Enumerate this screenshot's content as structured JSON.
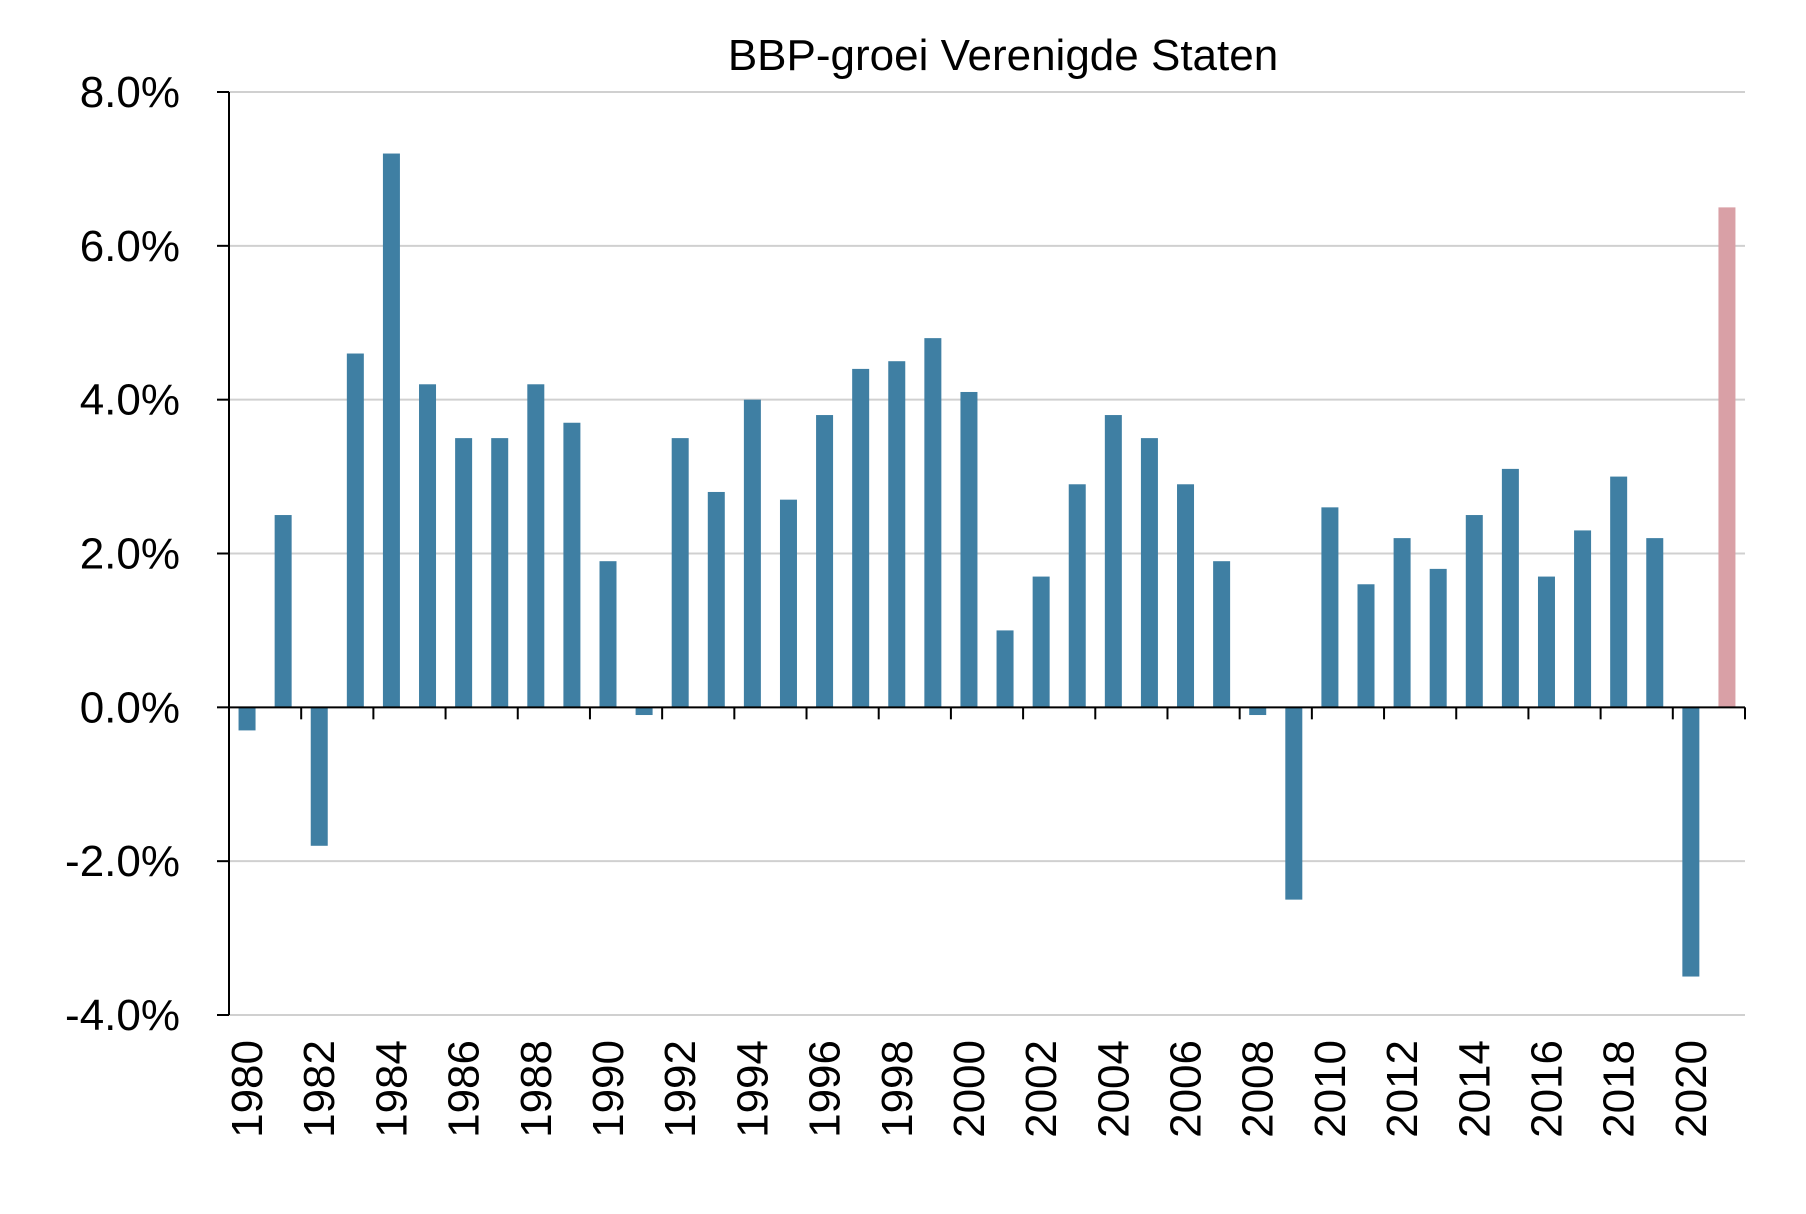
{
  "chart_data": {
    "type": "bar",
    "title": "BBP-groei Verenigde Staten",
    "xlabel": "",
    "ylabel": "",
    "ylim": [
      -4.0,
      8.0
    ],
    "y_ticks": [
      "-4.0%",
      "-2.0%",
      "0.0%",
      "2.0%",
      "4.0%",
      "6.0%",
      "8.0%"
    ],
    "y_tick_values": [
      -4,
      -2,
      0,
      2,
      4,
      6,
      8
    ],
    "x_tick_labels": [
      "1980",
      "1982",
      "1984",
      "1986",
      "1988",
      "1990",
      "1992",
      "1994",
      "1996",
      "1998",
      "2000",
      "2002",
      "2004",
      "2006",
      "2008",
      "2010",
      "2012",
      "2014",
      "2016",
      "2018",
      "2020"
    ],
    "grid": true,
    "legend": "none",
    "colors": {
      "actual": "#3f7fa3",
      "forecast": "#d9a0a6",
      "grid": "#d0d0d0",
      "axis": "#000000"
    },
    "categories": [
      "1980",
      "1981",
      "1982",
      "1983",
      "1984",
      "1985",
      "1986",
      "1987",
      "1988",
      "1989",
      "1990",
      "1991",
      "1992",
      "1993",
      "1994",
      "1995",
      "1996",
      "1997",
      "1998",
      "1999",
      "2000",
      "2001",
      "2002",
      "2003",
      "2004",
      "2005",
      "2006",
      "2007",
      "2008",
      "2009",
      "2010",
      "2011",
      "2012",
      "2013",
      "2014",
      "2015",
      "2016",
      "2017",
      "2018",
      "2019",
      "2020",
      "2021"
    ],
    "values": [
      -0.3,
      2.5,
      -1.8,
      4.6,
      7.2,
      4.2,
      3.5,
      3.5,
      4.2,
      3.7,
      1.9,
      -0.1,
      3.5,
      2.8,
      4.0,
      2.7,
      3.8,
      4.4,
      4.5,
      4.8,
      4.1,
      1.0,
      1.7,
      2.9,
      3.8,
      3.5,
      2.9,
      1.9,
      -0.1,
      -2.5,
      2.6,
      1.6,
      2.2,
      1.8,
      2.5,
      3.1,
      1.7,
      2.3,
      3.0,
      2.2,
      -3.5,
      6.5
    ],
    "highlight": {
      "category": "2021",
      "role": "forecast"
    }
  }
}
